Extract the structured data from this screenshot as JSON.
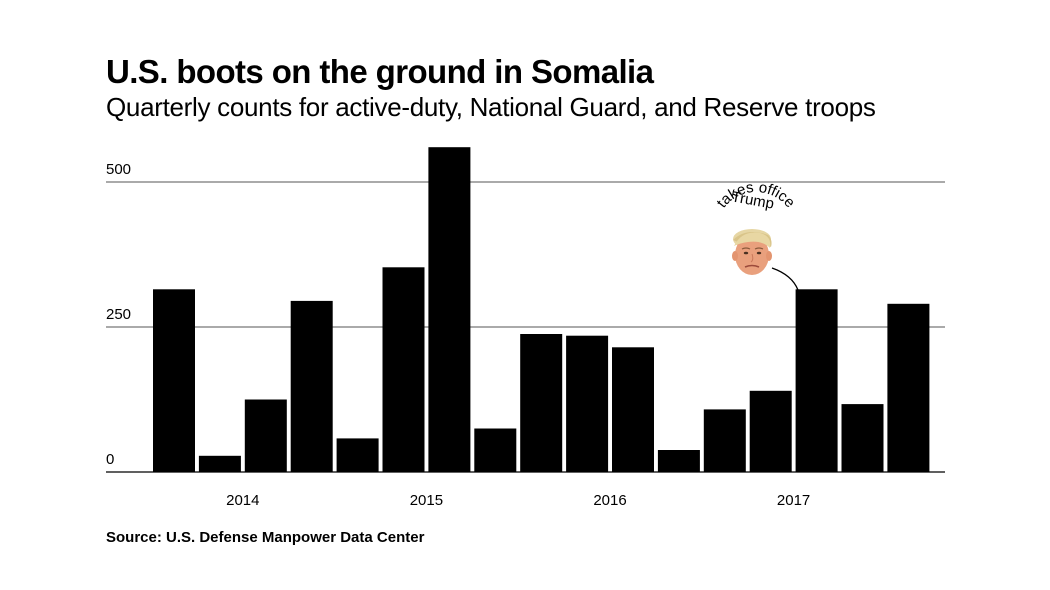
{
  "title": "U.S. boots on the ground in Somalia",
  "subtitle": "Quarterly counts for active-duty, National Guard, and Reserve troops",
  "source": "Source: U.S. Defense Manpower Data Center",
  "colors": {
    "bar": "#000000",
    "grid": "#555555",
    "background": "#ffffff"
  },
  "chart_data": {
    "type": "bar",
    "categories": [
      "Q1 2014",
      "Q2 2014",
      "Q3 2014",
      "Q4 2014",
      "Q1 2015",
      "Q2 2015",
      "Q3 2015",
      "Q4 2015",
      "Q1 2016",
      "Q2 2016",
      "Q3 2016",
      "Q4 2016",
      "Q1 2017",
      "Q2 2017",
      "Q3 2017",
      "Q4 2017",
      "Q1 2018"
    ],
    "values": [
      315,
      28,
      125,
      295,
      58,
      353,
      560,
      75,
      238,
      235,
      215,
      38,
      108,
      140,
      315,
      117,
      290
    ],
    "x_tick_labels": [
      "2014",
      "2015",
      "2016",
      "2017"
    ],
    "y_ticks": [
      0,
      250,
      500
    ],
    "ylim": [
      0,
      570
    ],
    "grid": true,
    "annotation": {
      "line1": "Trump",
      "line2": "takes office",
      "icon": "trump-portrait-icon",
      "target_category": "Q3 2017"
    }
  }
}
